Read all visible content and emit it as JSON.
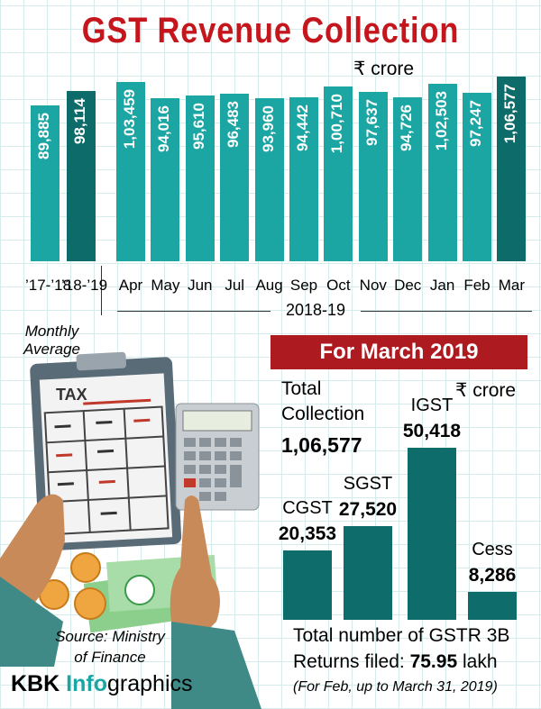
{
  "chart_data": [
    {
      "type": "bar",
      "title": "GST Revenue Collection",
      "unit": "₹ crore",
      "categories": [
        "’17-’18",
        "’18-’19",
        "Apr",
        "May",
        "Jun",
        "Jul",
        "Aug",
        "Sep",
        "Oct",
        "Nov",
        "Dec",
        "Jan",
        "Feb",
        "Mar"
      ],
      "values": [
        89885,
        98114,
        103459,
        94016,
        95610,
        96483,
        93960,
        94442,
        100710,
        97637,
        94726,
        102503,
        97247,
        106577
      ],
      "value_labels": [
        "89,885",
        "98,114",
        "1,03,459",
        "94,016",
        "95,610",
        "96,483",
        "93,960",
        "94,442",
        "1,00,710",
        "97,637",
        "94,726",
        "1,02,503",
        "97,247",
        "1,06,577"
      ],
      "colors": [
        "#1ba5a3",
        "#0d6b69",
        "#1ba5a3",
        "#1ba5a3",
        "#1ba5a3",
        "#1ba5a3",
        "#1ba5a3",
        "#1ba5a3",
        "#1ba5a3",
        "#1ba5a3",
        "#1ba5a3",
        "#1ba5a3",
        "#1ba5a3",
        "#0d6b69"
      ],
      "group_labels": [
        "Monthly Average",
        "2018-19"
      ]
    },
    {
      "type": "bar",
      "title": "For March 2019",
      "unit": "₹ crore",
      "total_label": "Total Collection",
      "total": 106577,
      "total_label_value": "1,06,577",
      "categories": [
        "CGST",
        "SGST",
        "IGST",
        "Cess"
      ],
      "values": [
        20353,
        27520,
        50418,
        8286
      ],
      "value_labels": [
        "20,353",
        "27,520",
        "50,418",
        "8,286"
      ],
      "color": "#0e6d6b"
    }
  ],
  "returns": {
    "line1": "Total number of GSTR 3B",
    "line2": "Returns filed:",
    "value": "75.95",
    "unit": "lakh",
    "note": "(For Feb, up to March 31, 2019)"
  },
  "source": "Source: Ministry of Finance",
  "brand": {
    "parts": [
      "KBK",
      "Info",
      "graphics"
    ]
  },
  "illustration_text": "TAX"
}
